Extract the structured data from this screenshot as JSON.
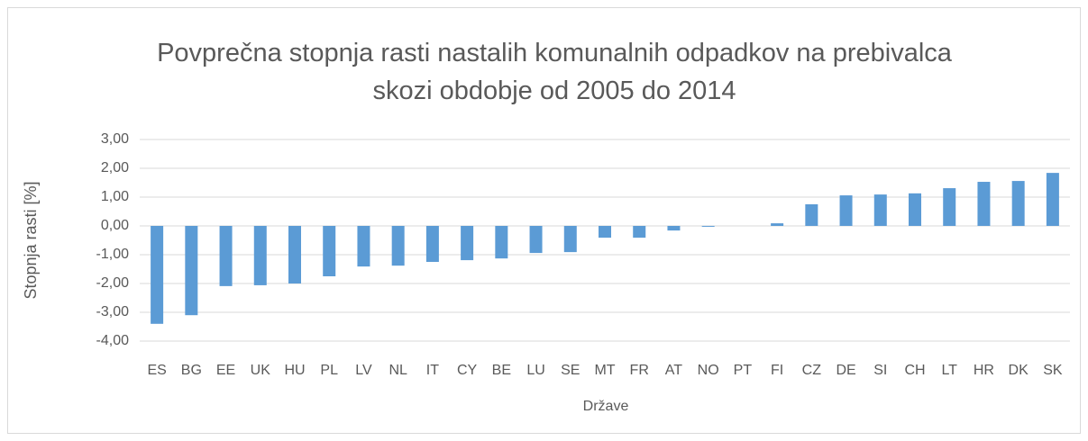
{
  "chart_data": {
    "type": "bar",
    "title": "Povprečna stopnja rasti nastalih komunalnih odpadkov na prebivalca skozi obdobje od 2005 do 2014",
    "xlabel": "Države",
    "ylabel": "Stopnja rasti [%]",
    "categories": [
      "ES",
      "BG",
      "EE",
      "UK",
      "HU",
      "PL",
      "LV",
      "NL",
      "IT",
      "CY",
      "BE",
      "LU",
      "SE",
      "MT",
      "FR",
      "AT",
      "NO",
      "PT",
      "FI",
      "CZ",
      "DE",
      "SI",
      "CH",
      "LT",
      "HR",
      "DK",
      "SK"
    ],
    "values": [
      -3.4,
      -3.1,
      -2.09,
      -2.06,
      -2.0,
      -1.75,
      -1.41,
      -1.38,
      -1.25,
      -1.19,
      -1.13,
      -0.94,
      -0.91,
      -0.41,
      -0.41,
      -0.16,
      -0.03,
      0,
      0.09,
      0.75,
      1.06,
      1.09,
      1.13,
      1.31,
      1.53,
      1.56,
      1.84
    ],
    "color": "#5b9bd5",
    "ylim": [
      -4,
      3
    ],
    "yticks": [
      {
        "value": -4,
        "label": "-4,00"
      },
      {
        "value": -3,
        "label": "-3,00"
      },
      {
        "value": -2,
        "label": "-2,00"
      },
      {
        "value": -1,
        "label": "-1,00"
      },
      {
        "value": 0,
        "label": "0,00"
      },
      {
        "value": 1,
        "label": "1,00"
      },
      {
        "value": 2,
        "label": "2,00"
      },
      {
        "value": 3,
        "label": "3,00"
      }
    ],
    "grid": true
  }
}
